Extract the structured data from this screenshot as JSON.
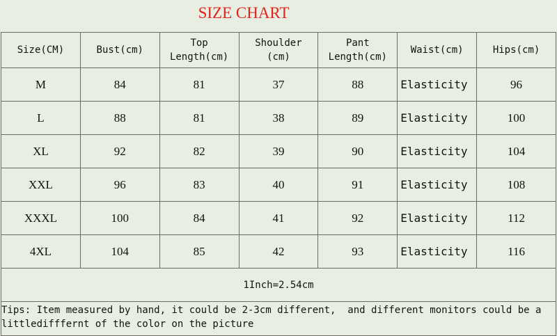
{
  "title": "SIZE CHART",
  "table": {
    "header": [
      [
        "Size(CM)"
      ],
      [
        "Bust(cm)"
      ],
      [
        "Top",
        "Length(cm)"
      ],
      [
        "Shoulder",
        "(cm)"
      ],
      [
        "Pant",
        "Length(cm)"
      ],
      [
        "Waist(cm)"
      ],
      [
        "Hips(cm)"
      ]
    ],
    "rows": [
      [
        "M",
        "84",
        "81",
        "37",
        "88",
        "Elasticity",
        "96"
      ],
      [
        "L",
        "88",
        "81",
        "38",
        "89",
        "Elasticity",
        "100"
      ],
      [
        "XL",
        "92",
        "82",
        "39",
        "90",
        "Elasticity",
        "104"
      ],
      [
        "XXL",
        "96",
        "83",
        "40",
        "91",
        "Elasticity",
        "108"
      ],
      [
        "XXXL",
        "100",
        "84",
        "41",
        "92",
        "Elasticity",
        "112"
      ],
      [
        "4XL",
        "104",
        "85",
        "42",
        "93",
        "Elasticity",
        "116"
      ]
    ],
    "note": "1Inch=2.54cm",
    "tips": "Tips: Item measured by hand, it could be 2-3cm different,  and different monitors could be a littledifffernt of the color on the picture"
  }
}
